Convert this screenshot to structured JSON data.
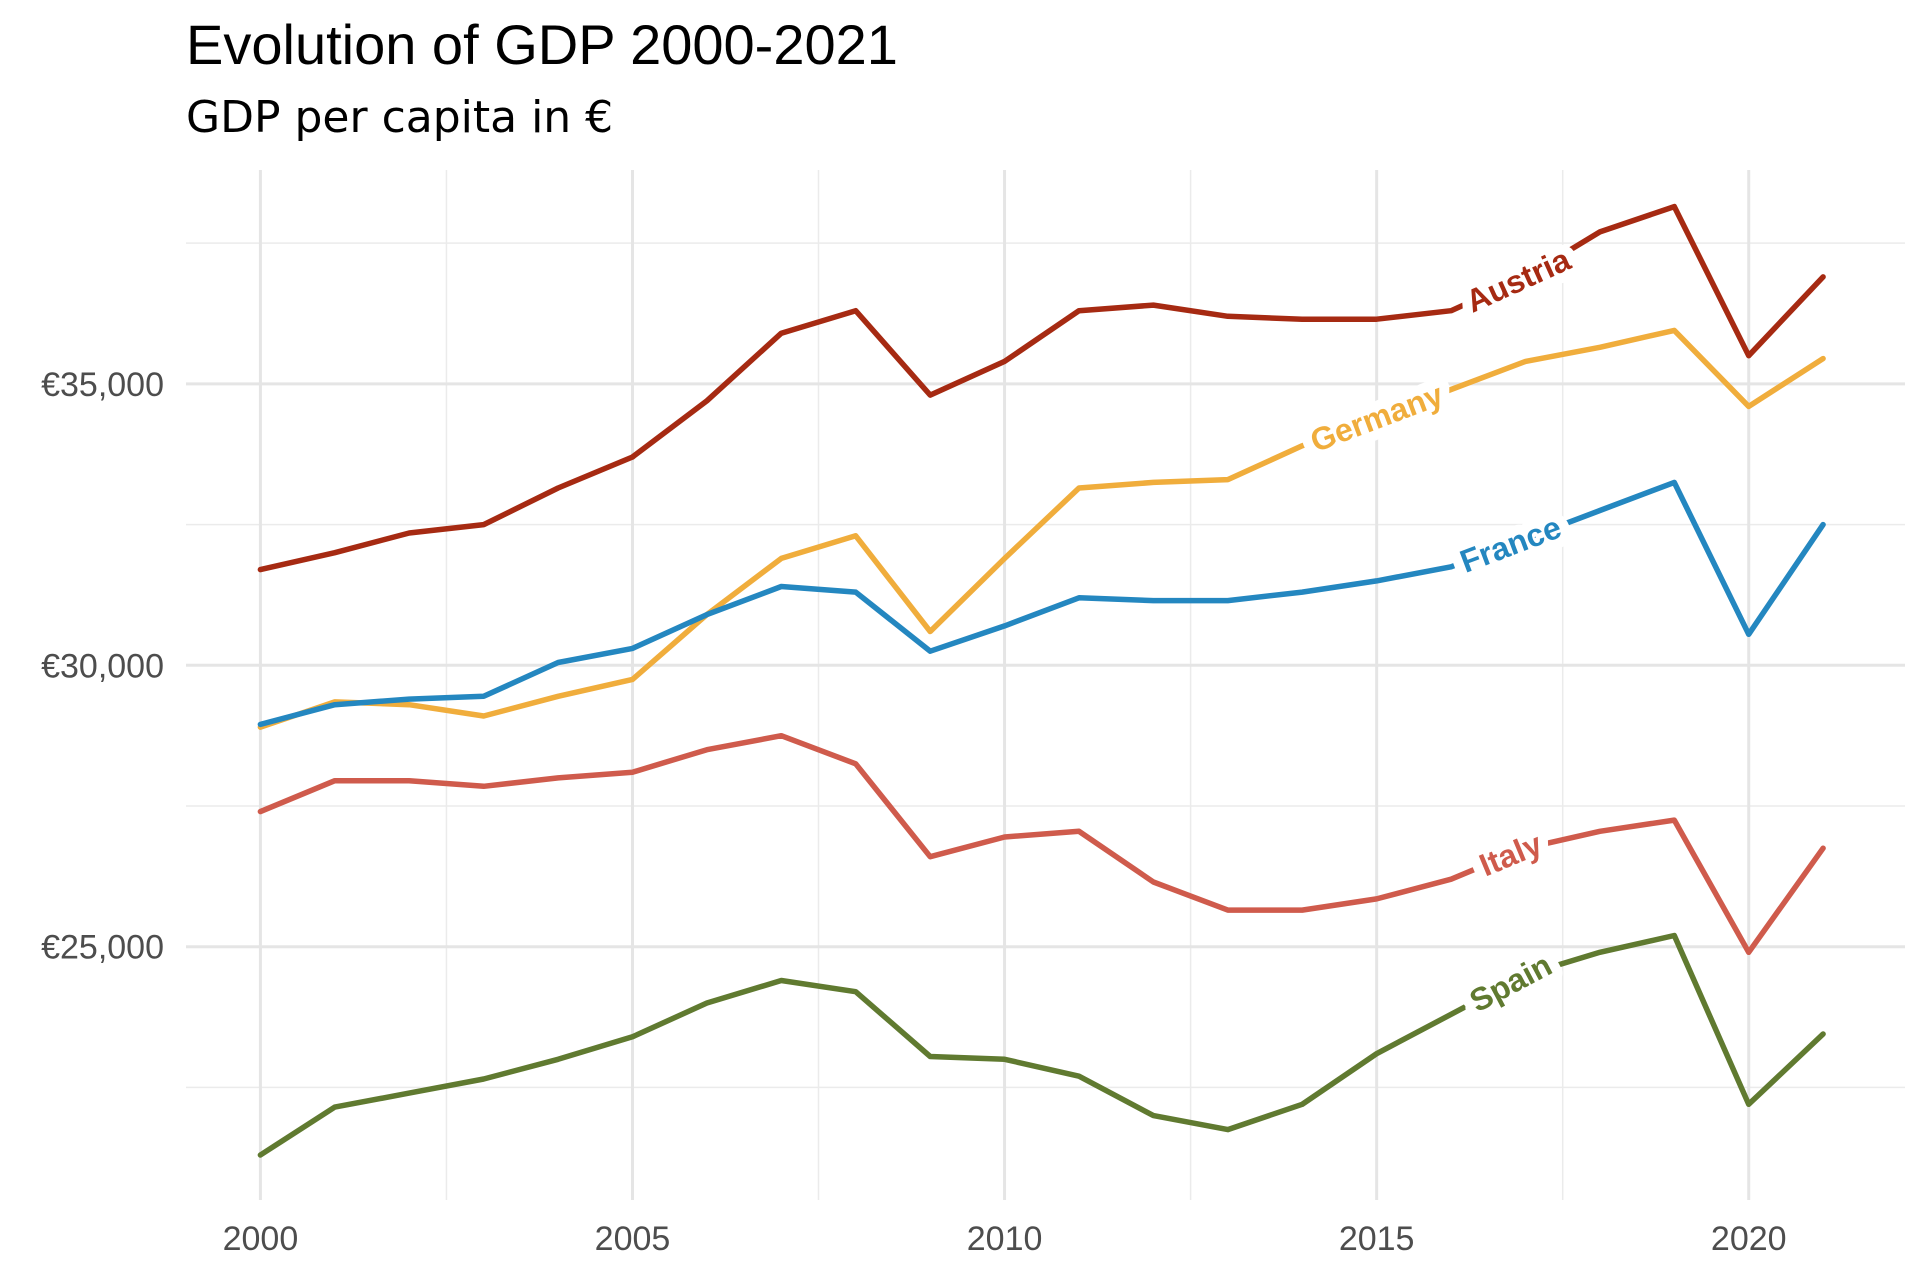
{
  "title": "Evolution of GDP 2000-2021",
  "subtitle": "GDP per capita in €",
  "chart_data": {
    "type": "line",
    "title": "Evolution of GDP 2000-2021",
    "subtitle": "GDP per capita in €",
    "xlabel": "",
    "ylabel": "",
    "xlim": [
      1999,
      2022.1
    ],
    "ylim": [
      20500,
      38800
    ],
    "grid": true,
    "legend": "direct labels on lines",
    "x_ticks": [
      2000,
      2005,
      2010,
      2015,
      2020
    ],
    "x_tick_labels": [
      "2000",
      "2005",
      "2010",
      "2015",
      "2020"
    ],
    "y_ticks": [
      25000,
      30000,
      35000
    ],
    "y_tick_labels": [
      "€25,000",
      "€30,000",
      "€35,000"
    ],
    "x": [
      2000,
      2001,
      2002,
      2003,
      2004,
      2005,
      2006,
      2007,
      2008,
      2009,
      2010,
      2011,
      2012,
      2013,
      2014,
      2015,
      2016,
      2017,
      2018,
      2019,
      2020,
      2021
    ],
    "series": [
      {
        "name": "Austria",
        "color": "#a62a12",
        "label_x": 2016.9,
        "values": [
          31700,
          32000,
          32350,
          32500,
          33150,
          33700,
          34700,
          35900,
          36300,
          34800,
          35400,
          36300,
          36400,
          36200,
          36150,
          36150,
          36300,
          36900,
          37700,
          38150,
          35500,
          36900
        ]
      },
      {
        "name": "Germany",
        "color": "#f0ad3c",
        "label_x": 2015.0,
        "values": [
          28900,
          29350,
          29300,
          29100,
          29450,
          29750,
          30900,
          31900,
          32300,
          30600,
          31900,
          33150,
          33250,
          33300,
          33900,
          34400,
          34900,
          35400,
          35650,
          35950,
          34600,
          35450
        ]
      },
      {
        "name": "France",
        "color": "#2487c0",
        "label_x": 2016.8,
        "values": [
          28950,
          29300,
          29400,
          29450,
          30050,
          30300,
          30900,
          31400,
          31300,
          30250,
          30700,
          31200,
          31150,
          31150,
          31300,
          31500,
          31750,
          32250,
          32750,
          33250,
          30550,
          32500
        ]
      },
      {
        "name": "Italy",
        "color": "#cf5b4c",
        "label_x": 2016.8,
        "values": [
          27400,
          27950,
          27950,
          27850,
          28000,
          28100,
          28500,
          28750,
          28250,
          26600,
          26950,
          27050,
          26150,
          25650,
          25650,
          25850,
          26200,
          26750,
          27050,
          27250,
          24900,
          26750
        ]
      },
      {
        "name": "Spain",
        "color": "#607a30",
        "label_x": 2016.8,
        "values": [
          21300,
          22150,
          22400,
          22650,
          23000,
          23400,
          24000,
          24400,
          24200,
          23050,
          23000,
          22700,
          22000,
          21750,
          22200,
          23100,
          23800,
          24500,
          24900,
          25200,
          22200,
          23450
        ]
      }
    ]
  }
}
